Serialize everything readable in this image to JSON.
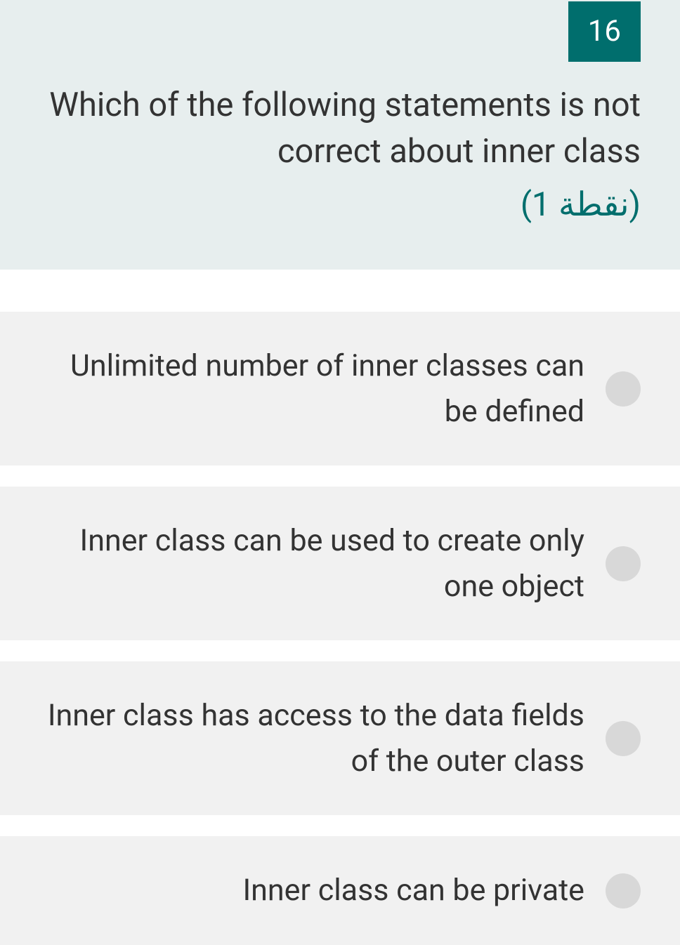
{
  "question": {
    "number": "16",
    "text": "Which of the following statements is not correct about inner class",
    "points": "(1 نقطة)"
  },
  "options": [
    {
      "text": "Unlimited number of inner classes can be defined"
    },
    {
      "text": "Inner class can be used to create only one object"
    },
    {
      "text": "Inner class has access to the data fields of the outer class"
    },
    {
      "text": "Inner class can be private"
    }
  ],
  "colors": {
    "header_bg": "#e7eeee",
    "badge_bg": "#006e6d",
    "badge_text": "#ffffff",
    "question_text": "#333333",
    "points_text": "#006e6d",
    "option_bg": "#f1f1f1",
    "option_text": "#333333",
    "radio_bg": "#d8d8d8"
  }
}
